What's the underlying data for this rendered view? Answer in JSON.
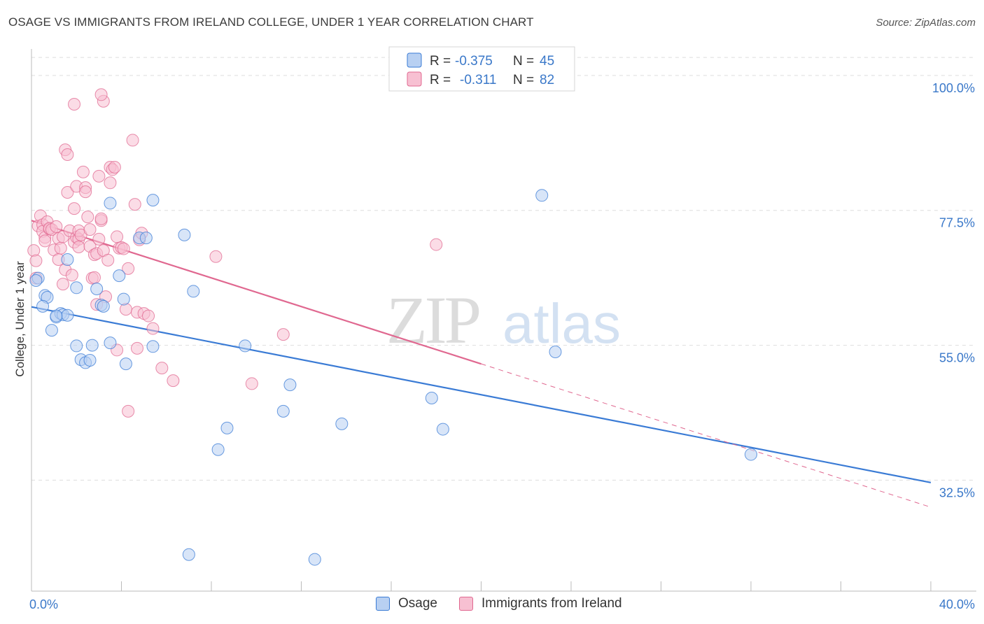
{
  "header": {
    "title": "OSAGE VS IMMIGRANTS FROM IRELAND COLLEGE, UNDER 1 YEAR CORRELATION CHART",
    "source": "Source: ZipAtlas.com"
  },
  "watermark": {
    "zip": "ZIP",
    "atlas": "atlas"
  },
  "colors": {
    "blue": "#3a7bd5",
    "blue_fill": "#b8d0f2",
    "pink": "#e06890",
    "pink_fill": "#f7c0d2",
    "tick_label": "#3a78c9"
  },
  "legend_top": {
    "rows": [
      {
        "r_label": "R =",
        "r_value": "-0.375",
        "n_label": "N =",
        "n_value": "45"
      },
      {
        "r_label": "R =",
        "r_value": "-0.311",
        "n_label": "N =",
        "n_value": "82"
      }
    ]
  },
  "legend_bottom": {
    "items": [
      {
        "label": "Osage"
      },
      {
        "label": "Immigrants from Ireland"
      }
    ]
  },
  "chart_data": {
    "type": "scatter",
    "title": "OSAGE VS IMMIGRANTS FROM IRELAND COLLEGE, UNDER 1 YEAR CORRELATION CHART",
    "xlabel": "",
    "ylabel": "College, Under 1 year",
    "xlim": [
      0,
      40
    ],
    "ylim": [
      14,
      105
    ],
    "x_tick_labels": [
      "0.0%",
      "40.0%"
    ],
    "y_ticks": [
      100,
      77.5,
      55,
      32.5
    ],
    "y_tick_labels": [
      "100.0%",
      "77.5%",
      "55.0%",
      "32.5%"
    ],
    "grid": true,
    "series": [
      {
        "name": "Osage",
        "r": -0.375,
        "n": 45,
        "trend": {
          "x": [
            0,
            40
          ],
          "y": [
            61.4,
            32.1
          ]
        },
        "points": [
          [
            0.3,
            66.2
          ],
          [
            0.6,
            63.3
          ],
          [
            0.7,
            63.0
          ],
          [
            0.5,
            61.5
          ],
          [
            0.9,
            57.5
          ],
          [
            1.1,
            59.7
          ],
          [
            1.3,
            60.3
          ],
          [
            1.4,
            60.1
          ],
          [
            1.6,
            60.0
          ],
          [
            1.6,
            69.3
          ],
          [
            2.0,
            54.9
          ],
          [
            2.0,
            64.6
          ],
          [
            2.2,
            52.6
          ],
          [
            2.4,
            52.1
          ],
          [
            2.6,
            52.5
          ],
          [
            2.7,
            55.0
          ],
          [
            2.9,
            64.4
          ],
          [
            3.1,
            61.7
          ],
          [
            3.2,
            61.5
          ],
          [
            3.5,
            78.7
          ],
          [
            3.5,
            55.4
          ],
          [
            3.9,
            66.6
          ],
          [
            4.1,
            62.7
          ],
          [
            4.2,
            51.9
          ],
          [
            4.8,
            72.9
          ],
          [
            5.1,
            72.9
          ],
          [
            5.4,
            54.8
          ],
          [
            5.4,
            79.2
          ],
          [
            6.8,
            73.4
          ],
          [
            7.0,
            20.1
          ],
          [
            7.2,
            64.0
          ],
          [
            8.3,
            37.6
          ],
          [
            8.7,
            41.2
          ],
          [
            9.5,
            54.9
          ],
          [
            11.2,
            44.0
          ],
          [
            11.5,
            48.4
          ],
          [
            12.6,
            19.3
          ],
          [
            13.8,
            41.9
          ],
          [
            17.8,
            46.2
          ],
          [
            18.3,
            41.0
          ],
          [
            22.7,
            80.0
          ],
          [
            23.3,
            53.9
          ],
          [
            32.0,
            36.8
          ],
          [
            0.2,
            65.8
          ],
          [
            1.1,
            59.9
          ]
        ]
      },
      {
        "name": "Immigrants from Ireland",
        "r": -0.311,
        "n": 82,
        "trend": {
          "x": [
            0,
            20
          ],
          "y": [
            75.8,
            51.9
          ]
        },
        "trend_extension": {
          "x": [
            20,
            40
          ],
          "y": [
            51.9,
            28.0
          ]
        },
        "points": [
          [
            0.1,
            70.8
          ],
          [
            0.2,
            69.1
          ],
          [
            0.2,
            66.2
          ],
          [
            0.3,
            74.9
          ],
          [
            0.4,
            76.6
          ],
          [
            0.5,
            75.1
          ],
          [
            0.5,
            74.0
          ],
          [
            0.6,
            73.0
          ],
          [
            0.6,
            72.4
          ],
          [
            0.7,
            75.6
          ],
          [
            0.8,
            74.4
          ],
          [
            0.8,
            74.5
          ],
          [
            0.9,
            74.3
          ],
          [
            1.0,
            70.9
          ],
          [
            1.1,
            74.8
          ],
          [
            1.2,
            72.8
          ],
          [
            1.2,
            69.3
          ],
          [
            1.3,
            71.2
          ],
          [
            1.4,
            73.1
          ],
          [
            1.4,
            65.2
          ],
          [
            1.5,
            67.6
          ],
          [
            1.5,
            87.6
          ],
          [
            1.6,
            86.8
          ],
          [
            1.6,
            80.5
          ],
          [
            1.7,
            74.1
          ],
          [
            1.8,
            66.7
          ],
          [
            1.9,
            77.8
          ],
          [
            1.9,
            72.2
          ],
          [
            1.9,
            95.2
          ],
          [
            2.0,
            81.5
          ],
          [
            2.0,
            73.0
          ],
          [
            2.1,
            72.7
          ],
          [
            2.1,
            74.1
          ],
          [
            2.1,
            71.4
          ],
          [
            2.2,
            73.4
          ],
          [
            2.3,
            83.9
          ],
          [
            2.4,
            81.3
          ],
          [
            2.4,
            80.6
          ],
          [
            2.5,
            76.4
          ],
          [
            2.6,
            74.3
          ],
          [
            2.6,
            71.5
          ],
          [
            2.7,
            66.2
          ],
          [
            2.8,
            66.3
          ],
          [
            2.8,
            70.1
          ],
          [
            2.9,
            70.3
          ],
          [
            2.9,
            61.8
          ],
          [
            3.0,
            83.2
          ],
          [
            3.0,
            72.7
          ],
          [
            3.1,
            75.8
          ],
          [
            3.1,
            76.1
          ],
          [
            3.2,
            70.8
          ],
          [
            3.3,
            63.1
          ],
          [
            3.4,
            69.2
          ],
          [
            3.5,
            84.7
          ],
          [
            3.5,
            82.1
          ],
          [
            3.6,
            84.3
          ],
          [
            3.7,
            84.7
          ],
          [
            3.8,
            73.1
          ],
          [
            3.9,
            71.2
          ],
          [
            4.0,
            71.3
          ],
          [
            4.1,
            71.1
          ],
          [
            4.2,
            61.0
          ],
          [
            4.3,
            67.8
          ],
          [
            4.5,
            89.2
          ],
          [
            4.6,
            78.5
          ],
          [
            4.7,
            60.5
          ],
          [
            4.7,
            54.5
          ],
          [
            4.8,
            72.6
          ],
          [
            4.9,
            73.7
          ],
          [
            5.0,
            60.3
          ],
          [
            5.2,
            59.9
          ],
          [
            5.4,
            57.8
          ],
          [
            5.8,
            51.2
          ],
          [
            6.3,
            49.1
          ],
          [
            8.2,
            69.8
          ],
          [
            9.8,
            48.6
          ],
          [
            11.2,
            56.8
          ],
          [
            18.0,
            71.8
          ],
          [
            4.3,
            44.0
          ],
          [
            3.8,
            54.2
          ],
          [
            3.2,
            95.7
          ],
          [
            3.1,
            96.8
          ]
        ]
      }
    ]
  }
}
